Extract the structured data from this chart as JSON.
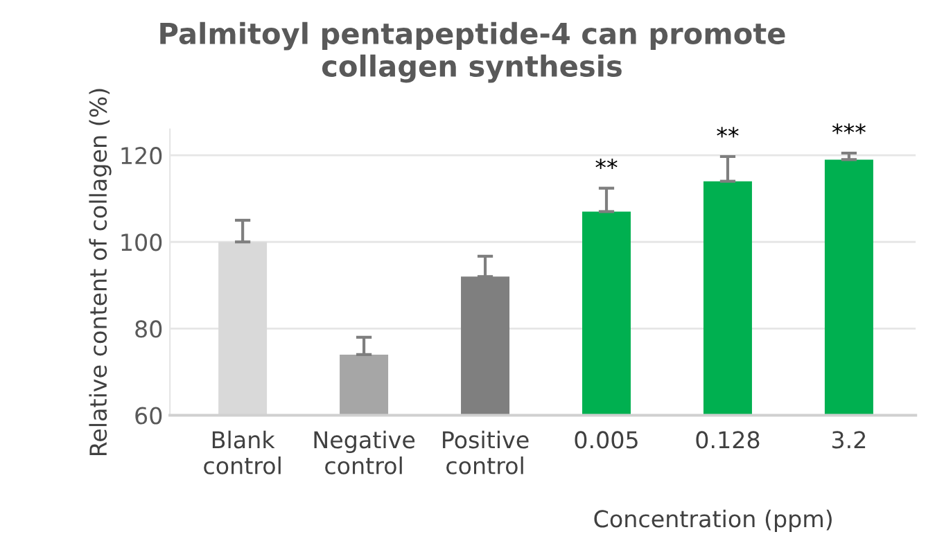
{
  "chart_data": {
    "type": "bar",
    "title": "Palmitoyl pentapeptide-4 can promote\ncollagen synthesis",
    "ylabel": "Relative content of collagen (%)",
    "xlabel": "Concentration (ppm)",
    "categories": [
      "Blank\ncontrol",
      "Negative\ncontrol",
      "Positive\ncontrol",
      "0.005",
      "0.128",
      "3.2"
    ],
    "values": [
      100,
      74,
      92,
      107,
      114,
      119
    ],
    "colors": [
      "#d9d9d9",
      "#a6a6a6",
      "#7f7f7f",
      "#00b050",
      "#00b050",
      "#00b050"
    ],
    "errors": [
      [
        100,
        105
      ],
      [
        74,
        78
      ],
      [
        92,
        96.7
      ],
      [
        107,
        112.4
      ],
      [
        114,
        119.7
      ],
      [
        119,
        120.5
      ]
    ],
    "annotations": [
      {
        "text": "**",
        "x": "0.005",
        "y": 112.4
      },
      {
        "text": "**",
        "x": "0.128",
        "y": 119.7
      },
      {
        "text": "***",
        "x": "3.2",
        "y": 120.5
      }
    ],
    "ylim": [
      60,
      126
    ],
    "yticks": [
      60,
      80,
      100,
      120
    ],
    "grid": "y",
    "legend": false
  }
}
